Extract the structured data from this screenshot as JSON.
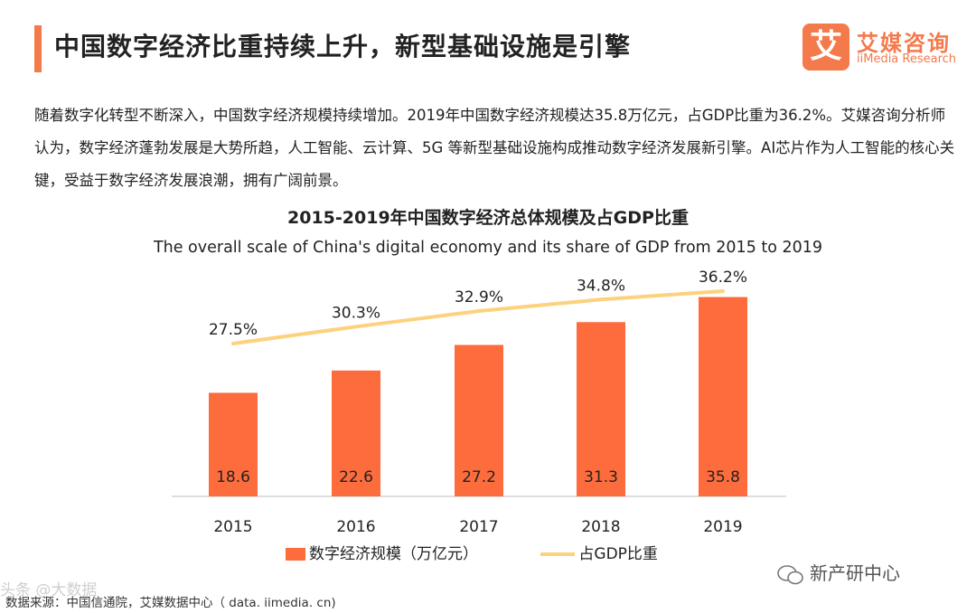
{
  "header": {
    "title": "中国数字经济比重持续上升，新型基础设施是引擎",
    "logo_mark": "艾",
    "logo_cn": "艾媒咨询",
    "logo_en": "iiMedia Research"
  },
  "intro": "随着数字化转型不断深入，中国数字经济规模持续增加。2019年中国数字经济规模达35.8万亿元，占GDP比重为36.2%。艾媒咨询分析师认为，数字经济蓬勃发展是大势所趋，人工智能、云计算、5G 等新型基础设施构成推动数字经济发展新引擎。AI芯片作为人工智能的核心关键，受益于数字经济发展浪潮，拥有广阔前景。",
  "legend": {
    "bar_label": "数字经济规模（万亿元）",
    "line_label": "占GDP比重"
  },
  "source": "数据来源：中国信通院，艾媒数据中心（ data. iimedia. cn)",
  "watermarks": {
    "left": "头条 @大数据",
    "right": "新产研中心"
  },
  "colors": {
    "bar": "#fd6c3c",
    "line": "#fcd27e",
    "accent": "#f47a4c"
  },
  "chart_data": {
    "type": "bar",
    "title": "2015-2019年中国数字经济总体规模及占GDP比重",
    "subtitle": "The overall scale of China's digital economy and its share of GDP from 2015 to 2019",
    "categories": [
      "2015",
      "2016",
      "2017",
      "2018",
      "2019"
    ],
    "series": [
      {
        "name": "数字经济规模（万亿元）",
        "type": "bar",
        "values": [
          18.6,
          22.6,
          27.2,
          31.3,
          35.8
        ],
        "labels": [
          "18.6",
          "22.6",
          "27.2",
          "31.3",
          "35.8"
        ]
      },
      {
        "name": "占GDP比重",
        "type": "line",
        "values": [
          27.5,
          30.3,
          32.9,
          34.8,
          36.2
        ],
        "labels": [
          "27.5%",
          "30.3%",
          "32.9%",
          "34.8%",
          "36.2%"
        ]
      }
    ],
    "ylim": [
      0,
      38
    ],
    "ylim_line": [
      15,
      37
    ],
    "grid": false,
    "legend_position": "bottom"
  }
}
